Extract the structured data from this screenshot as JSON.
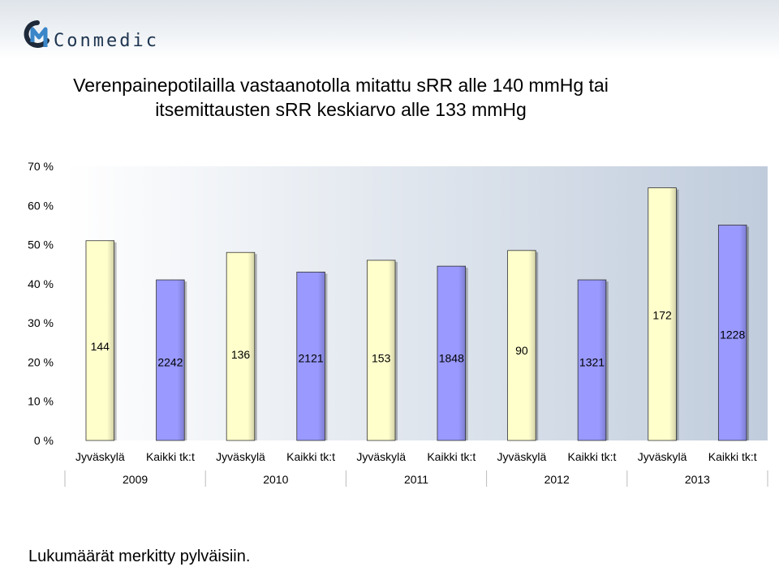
{
  "logo": {
    "text": "Conmedic",
    "icon": "conmedic-logo-icon"
  },
  "title_lines": [
    "Verenpainepotilailla vastaanotolla mitattu sRR alle 140 mmHg tai",
    "itsemittausten sRR keskiarvo alle 133 mmHg"
  ],
  "footnote": "Lukumäärät merkitty pylväisiin.",
  "chart_data": {
    "type": "bar",
    "categories": [
      "Jyväskylä",
      "Kaikki tk:t",
      "Jyväskylä",
      "Kaikki tk:t",
      "Jyväskylä",
      "Kaikki tk:t",
      "Jyväskylä",
      "Kaikki tk:t",
      "Jyväskylä",
      "Kaikki tk:t"
    ],
    "groups": [
      "2009",
      "2010",
      "2011",
      "2012",
      "2013"
    ],
    "values": [
      51,
      41,
      48,
      43,
      46,
      44.5,
      48.5,
      41,
      64.5,
      55
    ],
    "counts": [
      "144",
      "2242",
      "136",
      "2121",
      "153",
      "1848",
      "90",
      "1321",
      "172",
      "1228"
    ],
    "count_label_levels": [
      24,
      20,
      22,
      21,
      21,
      21,
      23,
      20,
      32,
      27
    ],
    "bar_colors": [
      "#ffffcc",
      "#9999ff",
      "#ffffcc",
      "#9999ff",
      "#ffffcc",
      "#9999ff",
      "#ffffcc",
      "#9999ff",
      "#ffffcc",
      "#9999ff"
    ],
    "ylim": [
      0,
      70
    ],
    "yticks": [
      "0 %",
      "10 %",
      "20 %",
      "30 %",
      "40 %",
      "50 %",
      "60 %",
      "70 %"
    ],
    "plot_background": "#c0ccdc",
    "grid": false,
    "legend": "none",
    "xlabel": "",
    "ylabel": ""
  }
}
